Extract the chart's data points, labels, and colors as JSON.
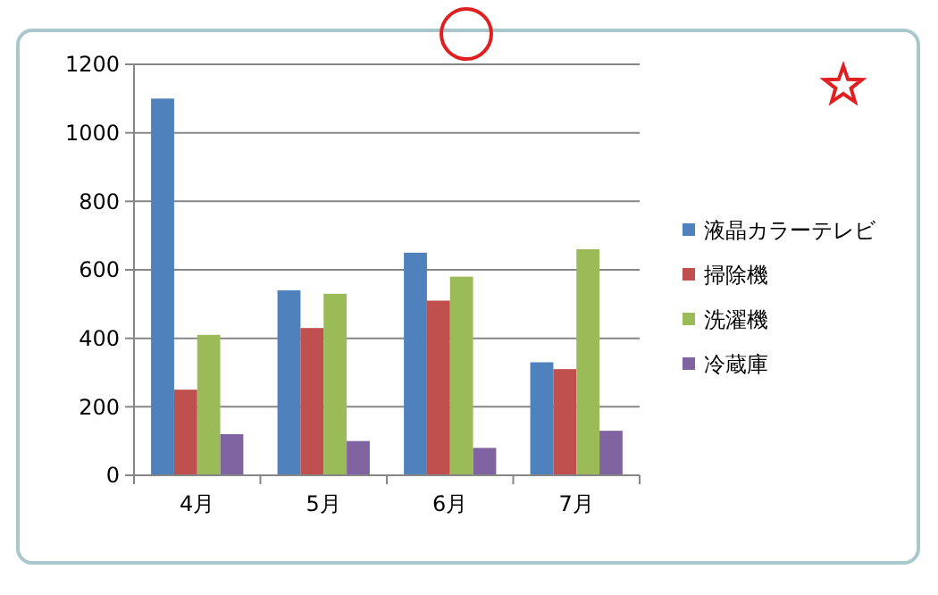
{
  "chart_data": {
    "type": "bar",
    "categories": [
      "4月",
      "5月",
      "6月",
      "7月"
    ],
    "series": [
      {
        "name": "液晶カラーテレビ",
        "color": "#4f81bd",
        "values": [
          1100,
          540,
          650,
          330
        ]
      },
      {
        "name": "掃除機",
        "color": "#c0504d",
        "values": [
          250,
          430,
          510,
          310
        ]
      },
      {
        "name": "洗濯機",
        "color": "#9bbb59",
        "values": [
          410,
          530,
          580,
          660
        ]
      },
      {
        "name": "冷蔵庫",
        "color": "#8064a2",
        "values": [
          120,
          100,
          80,
          130
        ]
      }
    ],
    "ylim": [
      0,
      1200
    ],
    "yticks": [
      0,
      200,
      400,
      600,
      800,
      1000,
      1200
    ],
    "grid": "y",
    "legend": "right"
  }
}
